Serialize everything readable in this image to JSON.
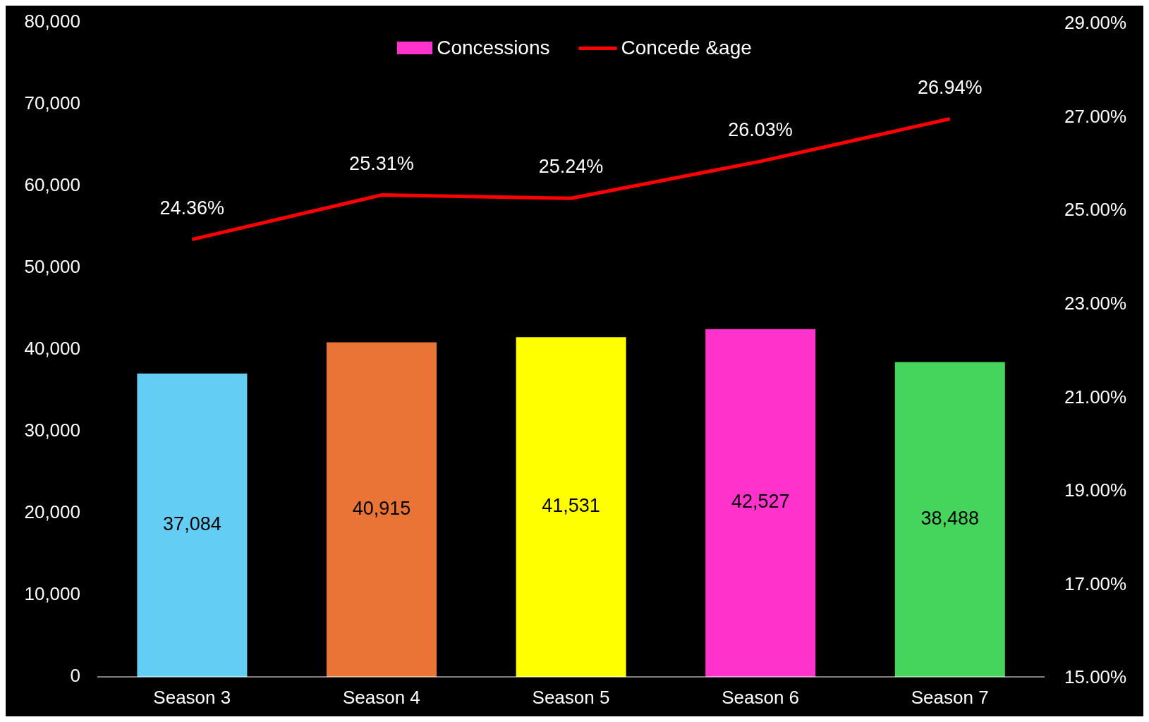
{
  "chart_data": {
    "type": "bar",
    "categories": [
      "Season 3",
      "Season 4",
      "Season 5",
      "Season 6",
      "Season 7"
    ],
    "series": [
      {
        "name": "Concessions",
        "color": "#ff33cc",
        "colors": [
          "#63cdf4",
          "#e97435",
          "#ffff00",
          "#ff33cc",
          "#45d55c"
        ],
        "values": [
          37084,
          40915,
          41531,
          42527,
          38488
        ],
        "value_labels": [
          "37,084",
          "40,915",
          "41,531",
          "42,527",
          "38,488"
        ]
      },
      {
        "name": "Concede &age",
        "type": "line",
        "axis": "y2",
        "color": "#ff0000",
        "values": [
          24.36,
          25.31,
          25.24,
          26.03,
          26.94
        ],
        "value_labels": [
          "24.36%",
          "25.31%",
          "25.24%",
          "26.03%",
          "26.94%"
        ]
      }
    ],
    "ylim": [
      0,
      80000
    ],
    "yticks": [
      0,
      {
        "value": 10000,
        "label": "10,000"
      },
      {
        "value": 20000,
        "label": "20,000"
      },
      {
        "value": 30000,
        "label": "30,000"
      },
      {
        "value": 40000,
        "label": "40,000"
      },
      {
        "value": 50000,
        "label": "50,000"
      },
      {
        "value": 60000,
        "label": "60,000"
      },
      {
        "value": 70000,
        "label": "70,000"
      },
      {
        "value": 80000,
        "label": "80,000"
      }
    ],
    "y2lim": [
      15,
      29
    ],
    "y2ticks": [
      {
        "value": 15,
        "label": "15.00%"
      },
      {
        "value": 17,
        "label": "17.00%"
      },
      {
        "value": 19,
        "label": "19.00%"
      },
      {
        "value": 21,
        "label": "21.00%"
      },
      {
        "value": 23,
        "label": "23.00%"
      },
      {
        "value": 25,
        "label": "25.00%"
      },
      {
        "value": 27,
        "label": "27.00%"
      },
      {
        "value": 29,
        "label": "29.00%"
      }
    ],
    "legend": "top",
    "grid": false,
    "marker": "none",
    "line_style": "solid"
  }
}
